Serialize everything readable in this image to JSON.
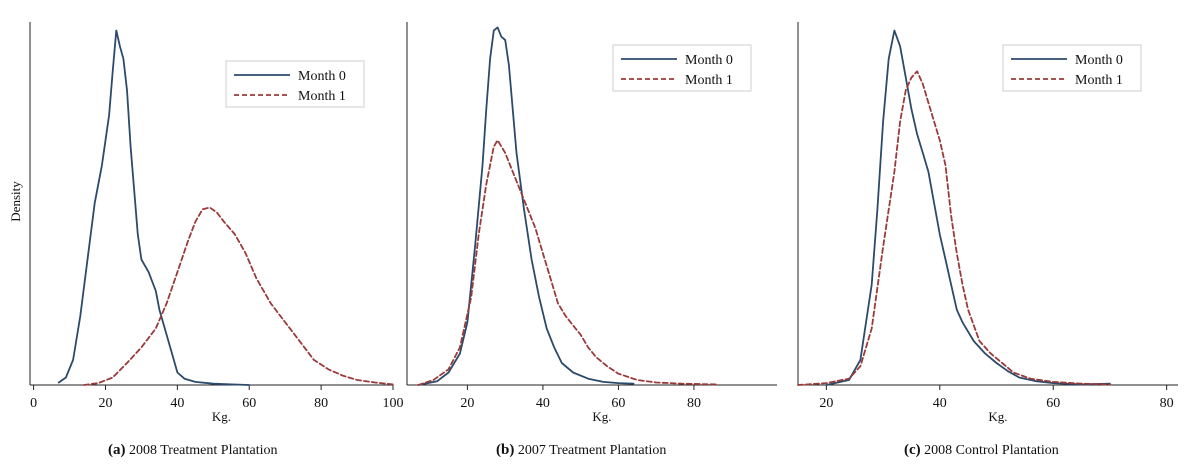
{
  "chart_data": [
    {
      "type": "line",
      "panel": "(a)",
      "caption": "2008 Treatment Plantation",
      "xlabel": "Kg.",
      "ylabel": "Density",
      "xlim": [
        -1,
        100
      ],
      "xticks": [
        0,
        20,
        40,
        60,
        80,
        100
      ],
      "legend": "top-right",
      "series": [
        {
          "name": "Month 0",
          "style": "solid",
          "color": "#2c4a6b",
          "points": [
            [
              7,
              0.004
            ],
            [
              9,
              0.012
            ],
            [
              11,
              0.04
            ],
            [
              13,
              0.11
            ],
            [
              15,
              0.2
            ],
            [
              17,
              0.29
            ],
            [
              19,
              0.35
            ],
            [
              21,
              0.43
            ],
            [
              22,
              0.5
            ],
            [
              23,
              0.565
            ],
            [
              24,
              0.54
            ],
            [
              25,
              0.52
            ],
            [
              26,
              0.47
            ],
            [
              27,
              0.38
            ],
            [
              29,
              0.24
            ],
            [
              30,
              0.2
            ],
            [
              32,
              0.18
            ],
            [
              34,
              0.15
            ],
            [
              35,
              0.12
            ],
            [
              37,
              0.08
            ],
            [
              39,
              0.04
            ],
            [
              40,
              0.02
            ],
            [
              42,
              0.01
            ],
            [
              45,
              0.005
            ],
            [
              50,
              0.002
            ],
            [
              55,
              0.001
            ],
            [
              60,
              0.0
            ]
          ]
        },
        {
          "name": "Month 1",
          "style": "dashed",
          "color": "#9b3a3a",
          "points": [
            [
              14,
              0.0
            ],
            [
              18,
              0.003
            ],
            [
              22,
              0.012
            ],
            [
              26,
              0.035
            ],
            [
              30,
              0.06
            ],
            [
              34,
              0.09
            ],
            [
              37,
              0.13
            ],
            [
              40,
              0.18
            ],
            [
              43,
              0.23
            ],
            [
              45,
              0.26
            ],
            [
              47,
              0.28
            ],
            [
              49,
              0.283
            ],
            [
              51,
              0.275
            ],
            [
              53,
              0.26
            ],
            [
              56,
              0.24
            ],
            [
              59,
              0.21
            ],
            [
              62,
              0.17
            ],
            [
              66,
              0.13
            ],
            [
              70,
              0.1
            ],
            [
              74,
              0.07
            ],
            [
              78,
              0.04
            ],
            [
              82,
              0.025
            ],
            [
              86,
              0.015
            ],
            [
              90,
              0.008
            ],
            [
              95,
              0.004
            ],
            [
              100,
              0.001
            ]
          ]
        }
      ]
    },
    {
      "type": "line",
      "panel": "(b)",
      "caption": "2007 Treatment Plantation",
      "xlabel": "Kg.",
      "ylabel": "",
      "xlim": [
        4,
        102
      ],
      "xticks": [
        20,
        40,
        60,
        80
      ],
      "legend": "top-right",
      "series": [
        {
          "name": "Month 0",
          "style": "solid",
          "color": "#2c4a6b",
          "points": [
            [
              7,
              0.0
            ],
            [
              12,
              0.006
            ],
            [
              15,
              0.02
            ],
            [
              18,
              0.05
            ],
            [
              20,
              0.1
            ],
            [
              22,
              0.22
            ],
            [
              24,
              0.35
            ],
            [
              25,
              0.44
            ],
            [
              26,
              0.52
            ],
            [
              27,
              0.565
            ],
            [
              28,
              0.57
            ],
            [
              29,
              0.555
            ],
            [
              30,
              0.55
            ],
            [
              31,
              0.51
            ],
            [
              32,
              0.44
            ],
            [
              33,
              0.37
            ],
            [
              35,
              0.28
            ],
            [
              37,
              0.2
            ],
            [
              39,
              0.14
            ],
            [
              41,
              0.09
            ],
            [
              43,
              0.06
            ],
            [
              45,
              0.035
            ],
            [
              48,
              0.02
            ],
            [
              52,
              0.01
            ],
            [
              56,
              0.005
            ],
            [
              60,
              0.003
            ],
            [
              64,
              0.002
            ]
          ]
        },
        {
          "name": "Month 1",
          "style": "dashed",
          "color": "#9b3a3a",
          "points": [
            [
              7,
              0.0
            ],
            [
              11,
              0.008
            ],
            [
              15,
              0.025
            ],
            [
              18,
              0.06
            ],
            [
              21,
              0.14
            ],
            [
              23,
              0.24
            ],
            [
              25,
              0.32
            ],
            [
              27,
              0.38
            ],
            [
              28,
              0.39
            ],
            [
              30,
              0.37
            ],
            [
              32,
              0.34
            ],
            [
              34,
              0.31
            ],
            [
              36,
              0.28
            ],
            [
              38,
              0.25
            ],
            [
              40,
              0.21
            ],
            [
              42,
              0.17
            ],
            [
              44,
              0.13
            ],
            [
              46,
              0.11
            ],
            [
              48,
              0.095
            ],
            [
              50,
              0.08
            ],
            [
              52,
              0.06
            ],
            [
              54,
              0.045
            ],
            [
              57,
              0.03
            ],
            [
              60,
              0.018
            ],
            [
              65,
              0.008
            ],
            [
              70,
              0.004
            ],
            [
              77,
              0.002
            ],
            [
              86,
              0.001
            ]
          ]
        }
      ]
    },
    {
      "type": "line",
      "panel": "(c)",
      "caption": "2008 Control Plantation",
      "xlabel": "Kg.",
      "ylabel": "",
      "xlim": [
        15,
        82
      ],
      "xticks": [
        20,
        40,
        60,
        80
      ],
      "legend": "top-right",
      "series": [
        {
          "name": "Month 0",
          "style": "solid",
          "color": "#2c4a6b",
          "points": [
            [
              20,
              0.0
            ],
            [
              24,
              0.008
            ],
            [
              26,
              0.04
            ],
            [
              28,
              0.16
            ],
            [
              29,
              0.28
            ],
            [
              30,
              0.42
            ],
            [
              31,
              0.52
            ],
            [
              32,
              0.565
            ],
            [
              33,
              0.54
            ],
            [
              34,
              0.49
            ],
            [
              35,
              0.44
            ],
            [
              36,
              0.4
            ],
            [
              37,
              0.37
            ],
            [
              38,
              0.34
            ],
            [
              39,
              0.29
            ],
            [
              40,
              0.24
            ],
            [
              41,
              0.2
            ],
            [
              42,
              0.16
            ],
            [
              43,
              0.12
            ],
            [
              44,
              0.1
            ],
            [
              46,
              0.07
            ],
            [
              48,
              0.05
            ],
            [
              50,
              0.035
            ],
            [
              52,
              0.022
            ],
            [
              54,
              0.012
            ],
            [
              57,
              0.006
            ],
            [
              60,
              0.003
            ],
            [
              65,
              0.001
            ],
            [
              70,
              0.002
            ]
          ]
        },
        {
          "name": "Month 1",
          "style": "dashed",
          "color": "#9b3a3a",
          "points": [
            [
              15,
              0.0
            ],
            [
              20,
              0.003
            ],
            [
              24,
              0.01
            ],
            [
              26,
              0.03
            ],
            [
              28,
              0.09
            ],
            [
              30,
              0.22
            ],
            [
              32,
              0.34
            ],
            [
              33,
              0.42
            ],
            [
              34,
              0.47
            ],
            [
              35,
              0.49
            ],
            [
              36,
              0.5
            ],
            [
              37,
              0.48
            ],
            [
              38,
              0.45
            ],
            [
              39,
              0.42
            ],
            [
              40,
              0.39
            ],
            [
              41,
              0.35
            ],
            [
              42,
              0.27
            ],
            [
              43,
              0.21
            ],
            [
              44,
              0.16
            ],
            [
              45,
              0.12
            ],
            [
              47,
              0.07
            ],
            [
              49,
              0.05
            ],
            [
              51,
              0.035
            ],
            [
              53,
              0.02
            ],
            [
              56,
              0.01
            ],
            [
              60,
              0.005
            ],
            [
              65,
              0.002
            ],
            [
              70,
              0.001
            ]
          ]
        }
      ]
    }
  ]
}
